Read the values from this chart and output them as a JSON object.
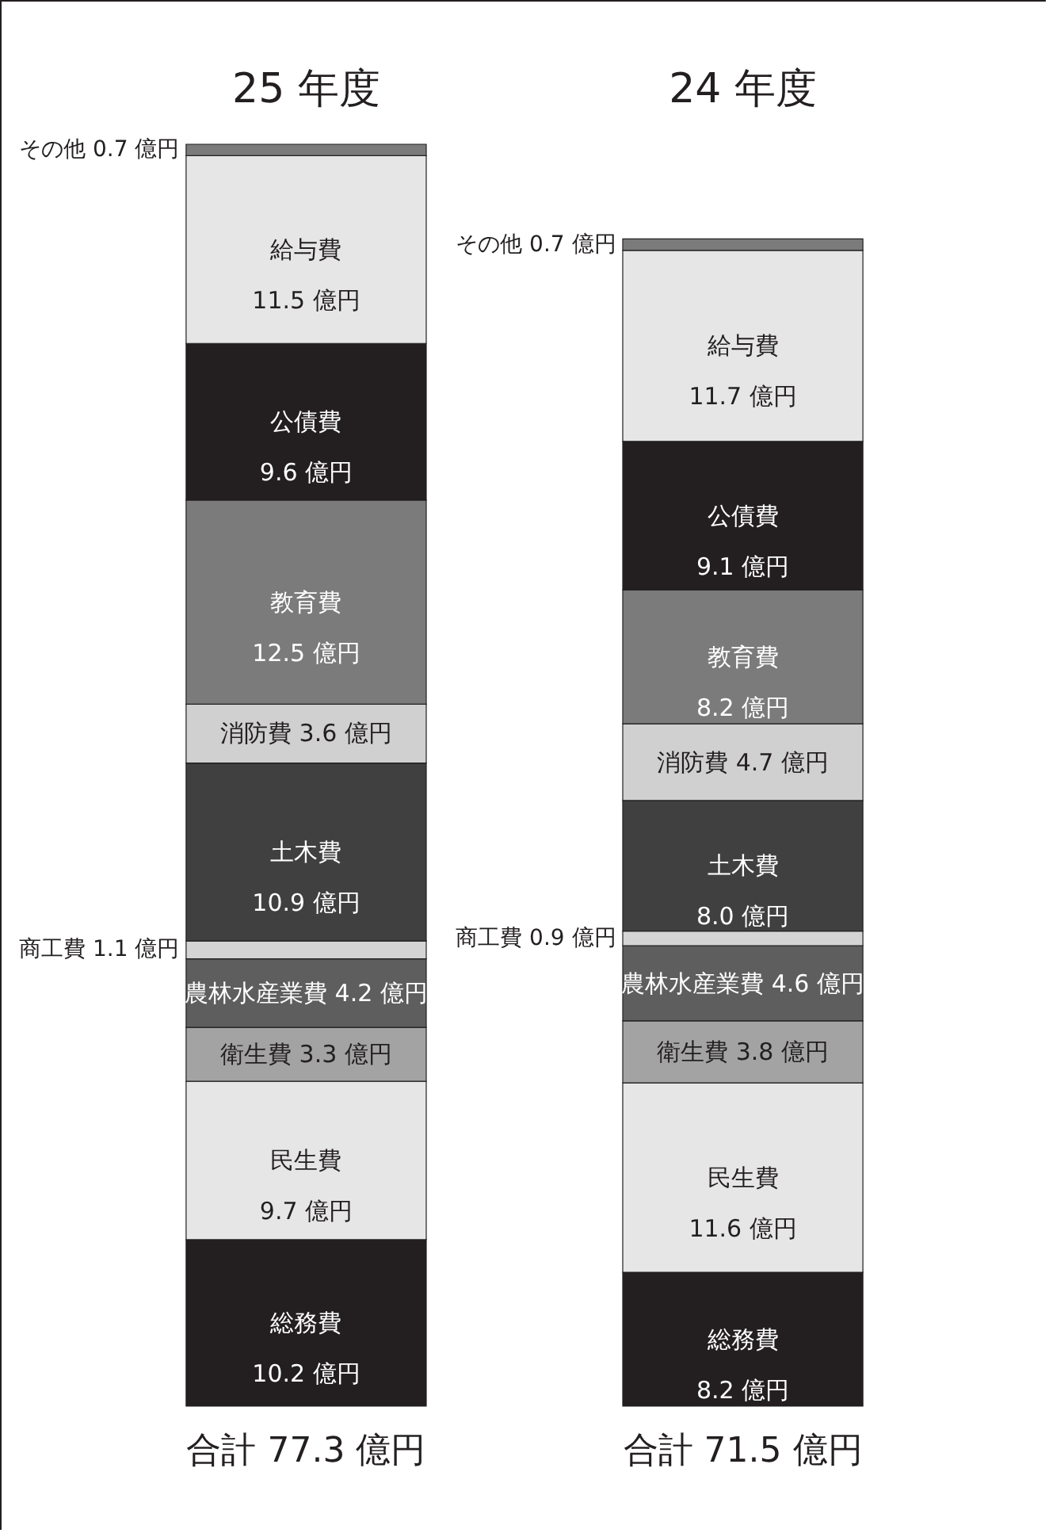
{
  "chart_data": {
    "type": "bar",
    "stacked": true,
    "categories": [
      "25 年度",
      "24 年度"
    ],
    "series": [
      {
        "name": "総務費",
        "color": "#231f20",
        "values": [
          10.2,
          8.2
        ],
        "value_labels": [
          "10.2 億円",
          "8.2 億円"
        ]
      },
      {
        "name": "民生費",
        "color": "#e6e6e6",
        "values": [
          9.7,
          11.6
        ],
        "value_labels": [
          "9.7 億円",
          "11.6 億円"
        ]
      },
      {
        "name": "衛生費",
        "color": "#a3a3a3",
        "values": [
          3.3,
          3.8
        ],
        "value_labels": [
          "3.3 億円",
          "3.8 億円"
        ]
      },
      {
        "name": "農林水産業費",
        "color": "#5e5e5e",
        "values": [
          4.2,
          4.6
        ],
        "value_labels": [
          "4.2 億円",
          "4.6 億円"
        ]
      },
      {
        "name": "商工費",
        "color": "#d4d4d4",
        "values": [
          1.1,
          0.9
        ],
        "value_labels": [
          "1.1 億円",
          "0.9 億円"
        ]
      },
      {
        "name": "土木費",
        "color": "#404040",
        "values": [
          10.9,
          8.0
        ],
        "value_labels": [
          "10.9 億円",
          "8.0 億円"
        ]
      },
      {
        "name": "消防費",
        "color": "#d0d0d0",
        "values": [
          3.6,
          4.7
        ],
        "value_labels": [
          "3.6 億円",
          "4.7 億円"
        ]
      },
      {
        "name": "教育費",
        "color": "#7b7b7b",
        "values": [
          12.5,
          8.2
        ],
        "value_labels": [
          "12.5 億円",
          "8.2 億円"
        ]
      },
      {
        "name": "公債費",
        "color": "#231f20",
        "values": [
          9.6,
          9.1
        ],
        "value_labels": [
          "9.6 億円",
          "9.1 億円"
        ]
      },
      {
        "name": "給与費",
        "color": "#e6e6e6",
        "values": [
          11.5,
          11.7
        ],
        "value_labels": [
          "11.5 億円",
          "11.7 億円"
        ]
      },
      {
        "name": "その他",
        "color": "#7b7b7b",
        "values": [
          0.7,
          0.7
        ],
        "value_labels": [
          "0.7 億円",
          "0.7 億円"
        ]
      }
    ],
    "totals": [
      "合計 77.3 億円",
      "合計 71.5 億円"
    ],
    "legend": false
  }
}
